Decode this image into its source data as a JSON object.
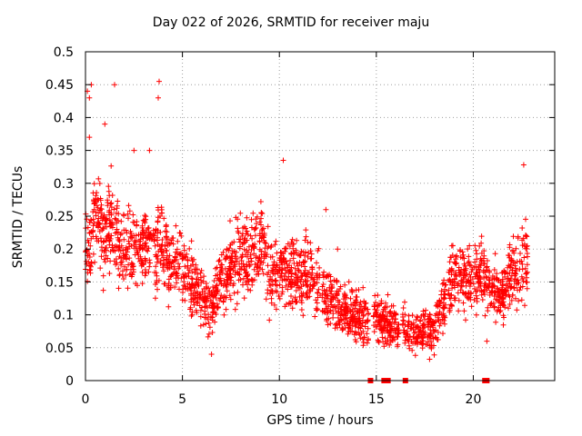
{
  "chart_data": {
    "type": "scatter",
    "title": "Day 022 of 2026, SRMTID for receiver maju",
    "xlabel": "GPS time / hours",
    "ylabel": "SRMTID / TECUs",
    "xlim": [
      0,
      24.2
    ],
    "ylim": [
      0,
      0.5
    ],
    "xticks": [
      0,
      5,
      10,
      15,
      20
    ],
    "yticks": [
      0,
      0.05,
      0.1,
      0.15,
      0.2,
      0.25,
      0.3,
      0.35,
      0.4,
      0.45,
      0.5
    ],
    "grid": true,
    "marker": "+",
    "color": "#ff0000",
    "trend": [
      {
        "x": 0.0,
        "y": 0.2
      },
      {
        "x": 0.5,
        "y": 0.24
      },
      {
        "x": 1.0,
        "y": 0.22
      },
      {
        "x": 1.5,
        "y": 0.23
      },
      {
        "x": 2.0,
        "y": 0.2
      },
      {
        "x": 2.5,
        "y": 0.21
      },
      {
        "x": 3.0,
        "y": 0.2
      },
      {
        "x": 3.5,
        "y": 0.22
      },
      {
        "x": 4.0,
        "y": 0.2
      },
      {
        "x": 4.5,
        "y": 0.18
      },
      {
        "x": 5.0,
        "y": 0.18
      },
      {
        "x": 5.5,
        "y": 0.15
      },
      {
        "x": 6.0,
        "y": 0.12
      },
      {
        "x": 6.5,
        "y": 0.11
      },
      {
        "x": 7.0,
        "y": 0.15
      },
      {
        "x": 7.5,
        "y": 0.17
      },
      {
        "x": 8.0,
        "y": 0.2
      },
      {
        "x": 8.5,
        "y": 0.18
      },
      {
        "x": 9.0,
        "y": 0.22
      },
      {
        "x": 9.5,
        "y": 0.16
      },
      {
        "x": 10.0,
        "y": 0.16
      },
      {
        "x": 10.5,
        "y": 0.17
      },
      {
        "x": 11.0,
        "y": 0.15
      },
      {
        "x": 11.5,
        "y": 0.16
      },
      {
        "x": 12.0,
        "y": 0.15
      },
      {
        "x": 12.5,
        "y": 0.13
      },
      {
        "x": 13.0,
        "y": 0.11
      },
      {
        "x": 13.5,
        "y": 0.1
      },
      {
        "x": 14.0,
        "y": 0.1
      },
      {
        "x": 14.5,
        "y": 0.09
      },
      {
        "x": 15.0,
        "y": 0.095
      },
      {
        "x": 15.5,
        "y": 0.085
      },
      {
        "x": 16.0,
        "y": 0.08
      },
      {
        "x": 16.5,
        "y": 0.075
      },
      {
        "x": 17.0,
        "y": 0.07
      },
      {
        "x": 17.5,
        "y": 0.075
      },
      {
        "x": 18.0,
        "y": 0.08
      },
      {
        "x": 18.5,
        "y": 0.12
      },
      {
        "x": 19.0,
        "y": 0.16
      },
      {
        "x": 19.5,
        "y": 0.155
      },
      {
        "x": 20.0,
        "y": 0.15
      },
      {
        "x": 20.5,
        "y": 0.17
      },
      {
        "x": 21.0,
        "y": 0.14
      },
      {
        "x": 21.5,
        "y": 0.13
      },
      {
        "x": 22.0,
        "y": 0.17
      },
      {
        "x": 22.5,
        "y": 0.17
      },
      {
        "x": 22.8,
        "y": 0.18
      }
    ],
    "spread": 0.06,
    "x_range_of_points": [
      0.0,
      22.8
    ],
    "gaps": [
      [
        14.6,
        14.85
      ],
      [
        16.2,
        16.35
      ],
      [
        18.6,
        18.7
      ]
    ],
    "outliers": [
      {
        "x": 0.1,
        "y": 0.44
      },
      {
        "x": 0.2,
        "y": 0.43
      },
      {
        "x": 0.3,
        "y": 0.45
      },
      {
        "x": 1.5,
        "y": 0.45
      },
      {
        "x": 3.8,
        "y": 0.455
      },
      {
        "x": 3.75,
        "y": 0.43
      },
      {
        "x": 1.0,
        "y": 0.39
      },
      {
        "x": 0.2,
        "y": 0.37
      },
      {
        "x": 2.5,
        "y": 0.35
      },
      {
        "x": 3.3,
        "y": 0.35
      },
      {
        "x": 10.2,
        "y": 0.335
      },
      {
        "x": 22.6,
        "y": 0.328
      },
      {
        "x": 6.5,
        "y": 0.04
      },
      {
        "x": 20.7,
        "y": 0.06
      },
      {
        "x": 13.0,
        "y": 0.2
      },
      {
        "x": 12.4,
        "y": 0.26
      }
    ],
    "zero_markers": [
      14.7,
      15.4,
      15.5,
      15.6,
      16.5,
      20.6,
      20.7
    ]
  }
}
